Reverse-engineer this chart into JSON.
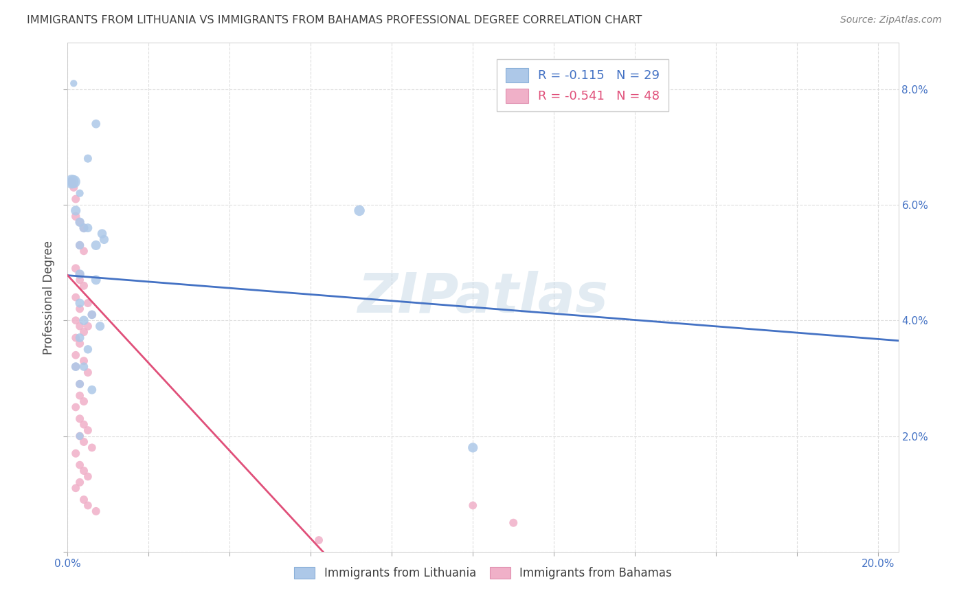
{
  "title": "IMMIGRANTS FROM LITHUANIA VS IMMIGRANTS FROM BAHAMAS PROFESSIONAL DEGREE CORRELATION CHART",
  "source": "Source: ZipAtlas.com",
  "ylabel": "Professional Degree",
  "xlim": [
    0.0,
    0.205
  ],
  "ylim": [
    0.0,
    0.088
  ],
  "xticks": [
    0.0,
    0.02,
    0.04,
    0.06,
    0.08,
    0.1,
    0.12,
    0.14,
    0.16,
    0.18,
    0.2
  ],
  "yticks": [
    0.0,
    0.02,
    0.04,
    0.06,
    0.08
  ],
  "xticklabels": [
    "0.0%",
    "",
    "",
    "",
    "",
    "",
    "",
    "",
    "",
    "",
    "20.0%"
  ],
  "yticklabels": [
    "",
    "2.0%",
    "4.0%",
    "6.0%",
    "8.0%"
  ],
  "watermark": "ZIPatlas",
  "legend_R1": "-0.115",
  "legend_N1": "29",
  "legend_R2": "-0.541",
  "legend_N2": "48",
  "blue_color": "#adc8e8",
  "pink_color": "#f0b0c8",
  "blue_line_color": "#4472c4",
  "pink_line_color": "#e0507a",
  "title_color": "#404040",
  "axis_label_color": "#4472c4",
  "blue_line_x": [
    0.0,
    0.205
  ],
  "blue_line_y": [
    0.0478,
    0.0365
  ],
  "pink_line_x": [
    0.0,
    0.063
  ],
  "pink_line_y": [
    0.0478,
    0.0
  ],
  "lithuania_points": [
    [
      0.0015,
      0.081
    ],
    [
      0.007,
      0.074
    ],
    [
      0.005,
      0.068
    ],
    [
      0.003,
      0.062
    ],
    [
      0.0085,
      0.055
    ],
    [
      0.009,
      0.054
    ],
    [
      0.001,
      0.064
    ],
    [
      0.0015,
      0.064
    ],
    [
      0.002,
      0.059
    ],
    [
      0.003,
      0.057
    ],
    [
      0.004,
      0.056
    ],
    [
      0.005,
      0.056
    ],
    [
      0.003,
      0.053
    ],
    [
      0.007,
      0.053
    ],
    [
      0.003,
      0.048
    ],
    [
      0.007,
      0.047
    ],
    [
      0.003,
      0.043
    ],
    [
      0.006,
      0.041
    ],
    [
      0.004,
      0.04
    ],
    [
      0.008,
      0.039
    ],
    [
      0.003,
      0.037
    ],
    [
      0.005,
      0.035
    ],
    [
      0.002,
      0.032
    ],
    [
      0.004,
      0.032
    ],
    [
      0.003,
      0.029
    ],
    [
      0.006,
      0.028
    ],
    [
      0.003,
      0.02
    ],
    [
      0.072,
      0.059
    ],
    [
      0.1,
      0.018
    ]
  ],
  "lithuania_sizes": [
    55,
    85,
    75,
    65,
    95,
    90,
    210,
    190,
    105,
    95,
    90,
    85,
    80,
    105,
    95,
    100,
    90,
    85,
    95,
    90,
    85,
    80,
    85,
    80,
    75,
    85,
    65,
    125,
    105
  ],
  "bahamas_points": [
    [
      0.001,
      0.064
    ],
    [
      0.0015,
      0.063
    ],
    [
      0.002,
      0.061
    ],
    [
      0.002,
      0.058
    ],
    [
      0.003,
      0.057
    ],
    [
      0.004,
      0.056
    ],
    [
      0.003,
      0.053
    ],
    [
      0.004,
      0.052
    ],
    [
      0.002,
      0.049
    ],
    [
      0.003,
      0.048
    ],
    [
      0.003,
      0.047
    ],
    [
      0.004,
      0.046
    ],
    [
      0.002,
      0.044
    ],
    [
      0.005,
      0.043
    ],
    [
      0.003,
      0.042
    ],
    [
      0.006,
      0.041
    ],
    [
      0.002,
      0.04
    ],
    [
      0.005,
      0.039
    ],
    [
      0.003,
      0.039
    ],
    [
      0.004,
      0.038
    ],
    [
      0.002,
      0.037
    ],
    [
      0.003,
      0.036
    ],
    [
      0.002,
      0.034
    ],
    [
      0.004,
      0.033
    ],
    [
      0.002,
      0.032
    ],
    [
      0.005,
      0.031
    ],
    [
      0.003,
      0.029
    ],
    [
      0.003,
      0.027
    ],
    [
      0.004,
      0.026
    ],
    [
      0.002,
      0.025
    ],
    [
      0.003,
      0.023
    ],
    [
      0.004,
      0.022
    ],
    [
      0.005,
      0.021
    ],
    [
      0.003,
      0.02
    ],
    [
      0.004,
      0.019
    ],
    [
      0.006,
      0.018
    ],
    [
      0.002,
      0.017
    ],
    [
      0.003,
      0.015
    ],
    [
      0.004,
      0.014
    ],
    [
      0.005,
      0.013
    ],
    [
      0.003,
      0.012
    ],
    [
      0.002,
      0.011
    ],
    [
      0.004,
      0.009
    ],
    [
      0.005,
      0.008
    ],
    [
      0.007,
      0.007
    ],
    [
      0.1,
      0.008
    ],
    [
      0.11,
      0.005
    ],
    [
      0.062,
      0.002
    ]
  ],
  "bahamas_sizes": [
    80,
    75,
    75,
    80,
    75,
    80,
    75,
    72,
    80,
    75,
    72,
    75,
    72,
    75,
    72,
    75,
    72,
    75,
    72,
    75,
    72,
    75,
    72,
    75,
    72,
    75,
    72,
    72,
    75,
    72,
    75,
    72,
    75,
    72,
    75,
    72,
    75,
    72,
    75,
    72,
    75,
    72,
    75,
    72,
    75,
    72,
    75,
    72
  ]
}
